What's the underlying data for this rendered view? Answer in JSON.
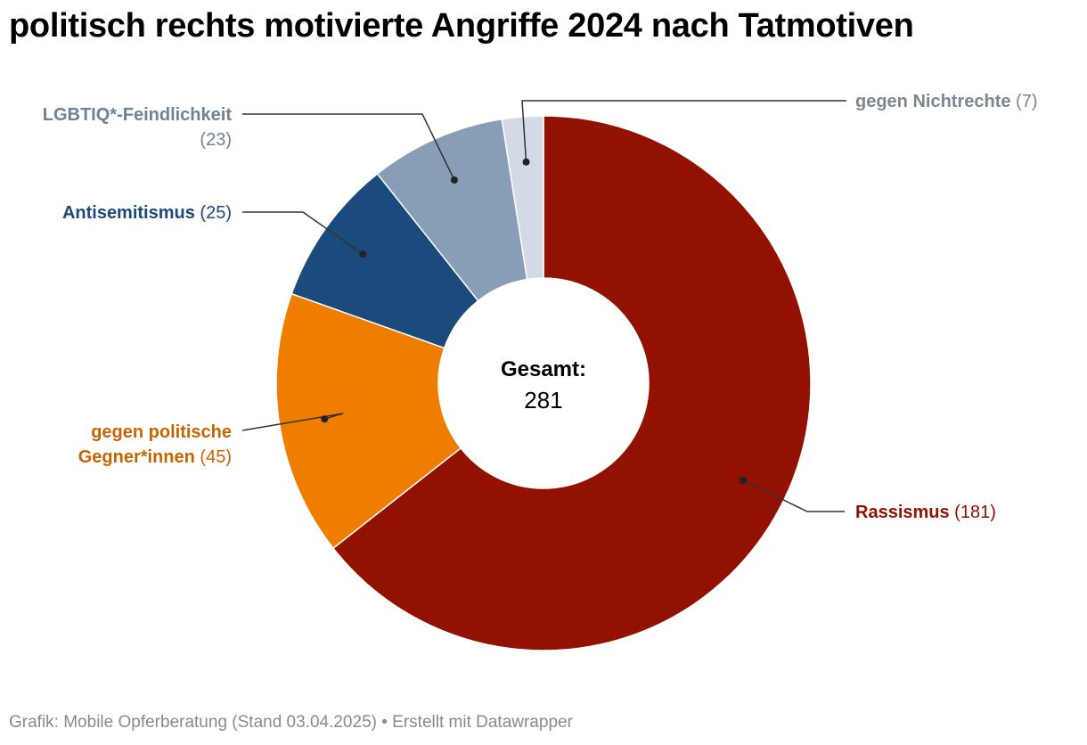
{
  "title": "politisch rechts motivierte Angriffe 2024 nach Tatmotiven",
  "footer": "Grafik: Mobile Opferberatung (Stand 03.04.2025) • Erstellt mit Datawrapper",
  "chart_data": {
    "type": "pie",
    "variant": "donut",
    "title": "politisch rechts motivierte Angriffe 2024 nach Tatmotiven",
    "center": {
      "label": "Gesamt:",
      "value": "281"
    },
    "slices": [
      {
        "name": "Rassismus",
        "value": 181,
        "value_label": "(181)",
        "color": "#921100",
        "label_color": "#921100"
      },
      {
        "name": "gegen politische Gegner*innen",
        "lines": [
          "gegen politische",
          "Gegner*innen"
        ],
        "value": 45,
        "value_label": "(45)",
        "color": "#ef7d00",
        "label_color": "#c96500"
      },
      {
        "name": "Antisemitismus",
        "value": 25,
        "value_label": "(25)",
        "color": "#1a4b7c",
        "label_color": "#1a4b7c"
      },
      {
        "name": "LGBTIQ*-Feindlichkeit",
        "value": 23,
        "value_label": "(23)",
        "color": "#889db6",
        "label_color": "#6f8299"
      },
      {
        "name": "gegen Nichtrechte",
        "value": 7,
        "value_label": "(7)",
        "color": "#d2dae5",
        "label_color": "#7d8791"
      }
    ]
  }
}
